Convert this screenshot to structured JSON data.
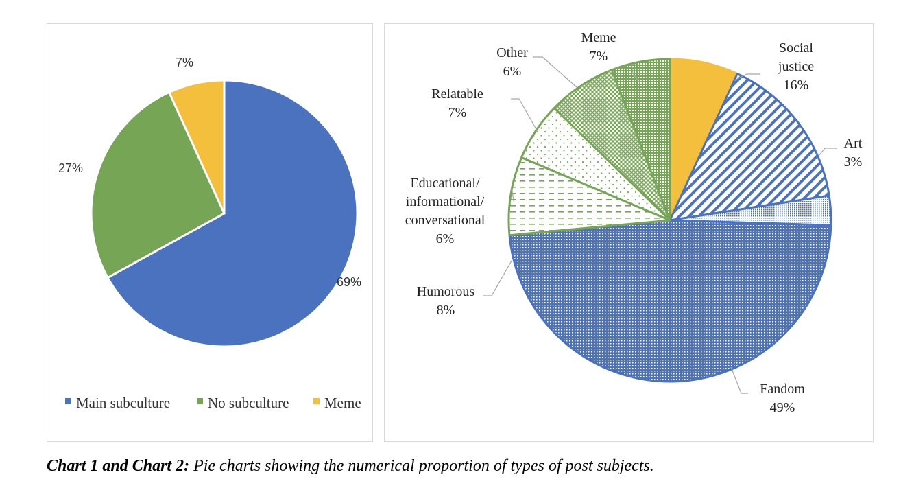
{
  "chart_data": [
    {
      "type": "pie",
      "title": "",
      "slices": [
        {
          "name": "Main subculture",
          "value": 69,
          "label": "69%",
          "color": "#4a72be"
        },
        {
          "name": "No subculture",
          "value": 27,
          "label": "27%",
          "color": "#76a655"
        },
        {
          "name": "Meme",
          "value": 7,
          "label": "7%",
          "color": "#f5bf3e"
        }
      ],
      "legend": {
        "position": "bottom",
        "entries": [
          "Main subculture",
          "No subculture",
          "Meme"
        ]
      }
    },
    {
      "type": "pie",
      "title": "",
      "slices": [
        {
          "name": "Meme",
          "value": 7,
          "label_lines": [
            "Meme",
            "7%"
          ],
          "color": "#f5bf3e",
          "pattern": "solid"
        },
        {
          "name": "Social justice",
          "value": 16,
          "label_lines": [
            "Social",
            "justice",
            "16%"
          ],
          "color": "#4a72be",
          "pattern": "diagonal"
        },
        {
          "name": "Art",
          "value": 3,
          "label_lines": [
            "Art",
            "3%"
          ],
          "color": "#4a72be",
          "pattern": "fine-dots"
        },
        {
          "name": "Fandom",
          "value": 49,
          "label_lines": [
            "Fandom",
            "49%"
          ],
          "color": "#4a72be",
          "pattern": "dots"
        },
        {
          "name": "Humorous",
          "value": 8,
          "label_lines": [
            "Humorous",
            "8%"
          ],
          "color": "#76a655",
          "pattern": "dashes"
        },
        {
          "name": "Educational/informational/conversational",
          "value": 6,
          "label_lines": [
            "Educational/",
            "informational/",
            "conversational",
            "6%"
          ],
          "color": "#76a655",
          "pattern": "sparse-dots"
        },
        {
          "name": "Relatable",
          "value": 7,
          "label_lines": [
            "Relatable",
            "7%"
          ],
          "color": "#76a655",
          "pattern": "crosshatch"
        },
        {
          "name": "Other",
          "value": 6,
          "label_lines": [
            "Other",
            "6%"
          ],
          "color": "#76a655",
          "pattern": "grid"
        }
      ]
    }
  ],
  "caption": {
    "bold": "Chart 1 and Chart 2:",
    "text": " Pie charts showing the numerical proportion of types of post subjects."
  }
}
